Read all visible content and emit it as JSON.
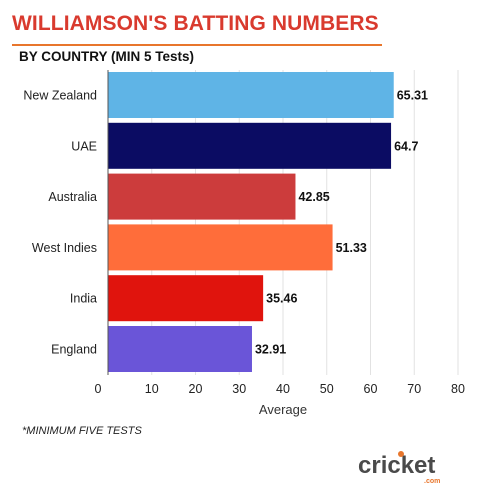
{
  "header": {
    "title": "WILLIAMSON'S BATTING NUMBERS",
    "subtitle": "BY COUNTRY (MIN 5 Tests)"
  },
  "chart_data": {
    "type": "bar",
    "orientation": "horizontal",
    "categories": [
      "New Zealand",
      "UAE",
      "Australia",
      "West Indies",
      "India",
      "England"
    ],
    "values": [
      65.31,
      64.7,
      42.85,
      51.33,
      35.46,
      32.91
    ],
    "value_labels": [
      "65.31",
      "64.7",
      "42.85",
      "51.33",
      "35.46",
      "32.91"
    ],
    "colors": [
      "#5fb4e6",
      "#0b0c63",
      "#cc3c3c",
      "#ff6d3a",
      "#e0140d",
      "#6a55d8"
    ],
    "xlabel": "Average",
    "ylabel": "",
    "xlim": [
      0,
      80
    ],
    "xticks": [
      0,
      10,
      20,
      30,
      40,
      50,
      60,
      70,
      80
    ],
    "grid": true
  },
  "footnote": "*MINIMUM FIVE TESTS",
  "logo": {
    "brand_text": "cricket",
    "suffix_text": ".com",
    "accent_color": "#e8762c"
  }
}
